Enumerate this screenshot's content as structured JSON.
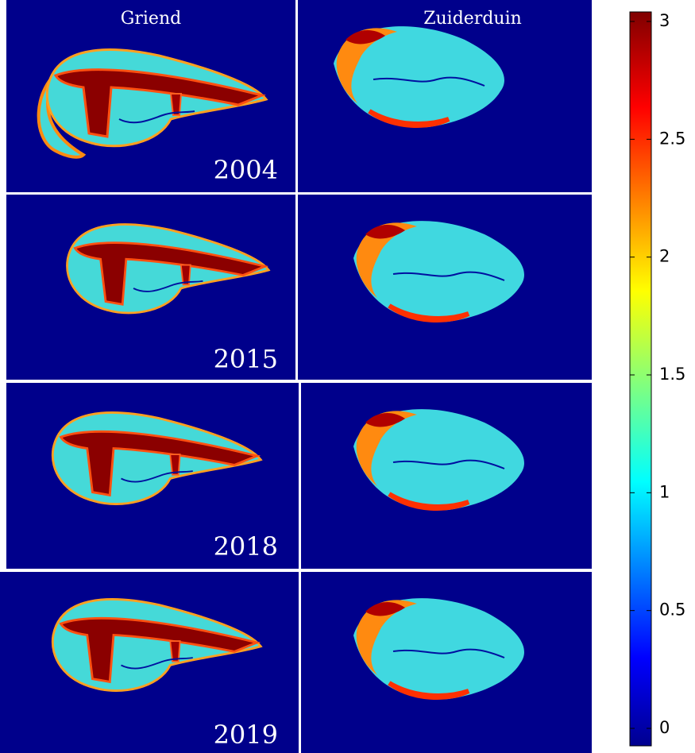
{
  "columns": [
    "Griend",
    "Zuiderduin"
  ],
  "rows": [
    {
      "year": "2004"
    },
    {
      "year": "2015"
    },
    {
      "year": "2018"
    },
    {
      "year": "2019"
    }
  ],
  "colorbar": {
    "range": [
      0,
      3
    ],
    "ticks": [
      0,
      0.5,
      1,
      1.5,
      2,
      2.5,
      3
    ]
  }
}
